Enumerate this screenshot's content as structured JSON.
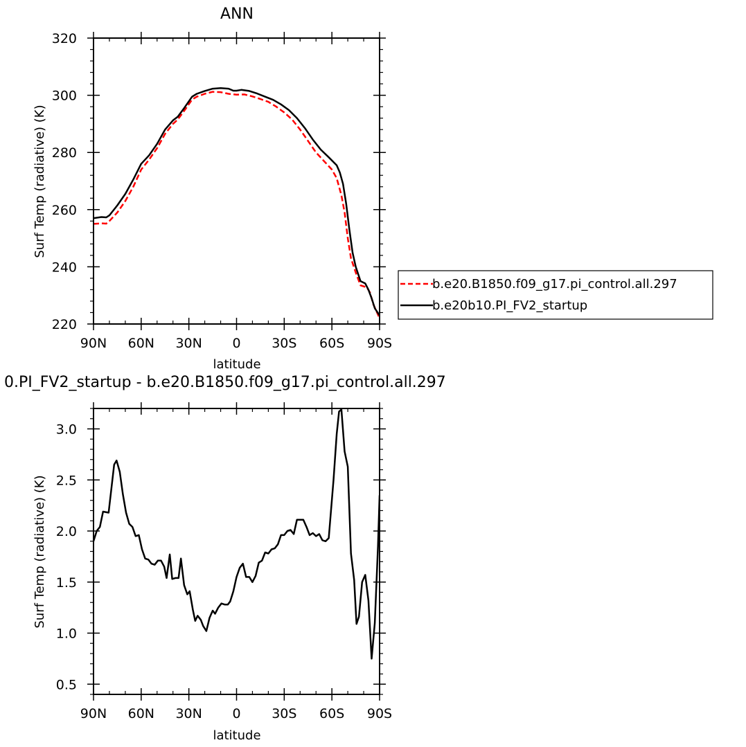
{
  "chart_data": [
    {
      "type": "line",
      "title": "ANN",
      "xlabel": "latitude",
      "ylabel": "Surf Temp (radiative) (K)",
      "xlim": [
        90,
        -90
      ],
      "ylim": [
        220,
        320
      ],
      "x_ticks": [
        90,
        60,
        30,
        0,
        -30,
        -60,
        -90
      ],
      "x_tick_labels": [
        "90N",
        "60N",
        "30N",
        "0",
        "30S",
        "60S",
        "90S"
      ],
      "y_ticks": [
        220,
        240,
        260,
        280,
        300,
        320
      ],
      "y_tick_labels": [
        "220",
        "240",
        "260",
        "280",
        "300",
        "320"
      ],
      "grid": false,
      "legend_placement": "right",
      "series": [
        {
          "name": "b.e20.B1850.f09_g17.pi_control.all.297",
          "color": "#ff0000",
          "style": "dashed",
          "points": [
            [
              90,
              255
            ],
            [
              85,
              255.2
            ],
            [
              82,
              255.1
            ],
            [
              80,
              256
            ],
            [
              75,
              259
            ],
            [
              70,
              263
            ],
            [
              65,
              268
            ],
            [
              60,
              274
            ],
            [
              55,
              277.5
            ],
            [
              50,
              281.5
            ],
            [
              45,
              286.5
            ],
            [
              40,
              290
            ],
            [
              37,
              291.5
            ],
            [
              33,
              294.5
            ],
            [
              28,
              298.5
            ],
            [
              25,
              299.5
            ],
            [
              20,
              300.5
            ],
            [
              15,
              301.2
            ],
            [
              10,
              301.1
            ],
            [
              5,
              300.5
            ],
            [
              0,
              300.2
            ],
            [
              -5,
              300.3
            ],
            [
              -10,
              299.6
            ],
            [
              -15,
              298.7
            ],
            [
              -20,
              297.7
            ],
            [
              -25,
              296
            ],
            [
              -30,
              294
            ],
            [
              -35,
              291.5
            ],
            [
              -40,
              288
            ],
            [
              -45,
              284
            ],
            [
              -50,
              280
            ],
            [
              -55,
              277
            ],
            [
              -60,
              274
            ],
            [
              -63,
              271
            ],
            [
              -66,
              265
            ],
            [
              -68,
              259
            ],
            [
              -70,
              250
            ],
            [
              -72,
              243
            ],
            [
              -75,
              238
            ],
            [
              -78,
              233.5
            ],
            [
              -82,
              232.8
            ],
            [
              -84,
              231
            ],
            [
              -86,
              227
            ],
            [
              -88,
              224.5
            ],
            [
              -90,
              222
            ]
          ]
        },
        {
          "name": "b.e20b10.PI_FV2_startup",
          "color": "#000000",
          "style": "solid",
          "points": [
            [
              90,
              257
            ],
            [
              85,
              257.4
            ],
            [
              82,
              257.3
            ],
            [
              80,
              258
            ],
            [
              75,
              261.5
            ],
            [
              70,
              265.5
            ],
            [
              65,
              270.5
            ],
            [
              60,
              276
            ],
            [
              55,
              279
            ],
            [
              50,
              283
            ],
            [
              45,
              288
            ],
            [
              40,
              291.2
            ],
            [
              37,
              292.5
            ],
            [
              33,
              295.5
            ],
            [
              28,
              299.5
            ],
            [
              25,
              300.5
            ],
            [
              20,
              301.5
            ],
            [
              15,
              302.3
            ],
            [
              10,
              302.5
            ],
            [
              5,
              302.3
            ],
            [
              2,
              301.6
            ],
            [
              0,
              301.6
            ],
            [
              -3,
              301.9
            ],
            [
              -8,
              301.5
            ],
            [
              -13,
              300.6
            ],
            [
              -18,
              299.5
            ],
            [
              -23,
              298.4
            ],
            [
              -28,
              296.8
            ],
            [
              -33,
              294.8
            ],
            [
              -38,
              292
            ],
            [
              -43,
              288.5
            ],
            [
              -48,
              284.5
            ],
            [
              -53,
              281
            ],
            [
              -58,
              278.3
            ],
            [
              -63,
              275.5
            ],
            [
              -65,
              273
            ],
            [
              -67,
              269
            ],
            [
              -69,
              262
            ],
            [
              -71,
              253
            ],
            [
              -73,
              245
            ],
            [
              -75,
              240
            ],
            [
              -78,
              235
            ],
            [
              -81,
              234.2
            ],
            [
              -83,
              232
            ],
            [
              -85,
              229
            ],
            [
              -87,
              225.5
            ],
            [
              -90,
              223
            ]
          ]
        }
      ]
    },
    {
      "type": "line",
      "title": "0.PI_FV2_startup - b.e20.B1850.f09_g17.pi_control.all.297",
      "xlabel": "latitude",
      "ylabel": "Surf Temp (radiative) (K)",
      "xlim": [
        90,
        -90
      ],
      "ylim": [
        0.4,
        3.2
      ],
      "x_ticks": [
        90,
        60,
        30,
        0,
        -30,
        -60,
        -90
      ],
      "x_tick_labels": [
        "90N",
        "60N",
        "30N",
        "0",
        "30S",
        "60S",
        "90S"
      ],
      "y_ticks": [
        0.5,
        1.0,
        1.5,
        2.0,
        2.5,
        3.0
      ],
      "y_tick_labels": [
        "0.5",
        "1.0",
        "1.5",
        "2.0",
        "2.5",
        "3.0"
      ],
      "grid": false,
      "series": [
        {
          "color": "#000000",
          "style": "solid",
          "points": [
            [
              90,
              1.9
            ],
            [
              88,
              2.0
            ],
            [
              86,
              2.04
            ],
            [
              84,
              2.19
            ],
            [
              80.5,
              2.18
            ],
            [
              77,
              2.65
            ],
            [
              75.5,
              2.69
            ],
            [
              73.5,
              2.58
            ],
            [
              71.5,
              2.36
            ],
            [
              69.5,
              2.18
            ],
            [
              67.5,
              2.07
            ],
            [
              65.5,
              2.04
            ],
            [
              63.5,
              1.95
            ],
            [
              61.5,
              1.96
            ],
            [
              59.5,
              1.82
            ],
            [
              57.5,
              1.73
            ],
            [
              55.5,
              1.72
            ],
            [
              53.5,
              1.68
            ],
            [
              51.5,
              1.67
            ],
            [
              49.5,
              1.71
            ],
            [
              47.5,
              1.71
            ],
            [
              45.5,
              1.65
            ],
            [
              44,
              1.54
            ],
            [
              42,
              1.77
            ],
            [
              40.5,
              1.53
            ],
            [
              38.5,
              1.54
            ],
            [
              36.5,
              1.54
            ],
            [
              35,
              1.73
            ],
            [
              33,
              1.47
            ],
            [
              31,
              1.38
            ],
            [
              29.5,
              1.41
            ],
            [
              27.5,
              1.23
            ],
            [
              26,
              1.12
            ],
            [
              24.5,
              1.17
            ],
            [
              22.5,
              1.13
            ],
            [
              21,
              1.07
            ],
            [
              19,
              1.02
            ],
            [
              17,
              1.15
            ],
            [
              15,
              1.22
            ],
            [
              13.5,
              1.19
            ],
            [
              11.5,
              1.25
            ],
            [
              9.5,
              1.29
            ],
            [
              7.5,
              1.28
            ],
            [
              5.5,
              1.28
            ],
            [
              4,
              1.31
            ],
            [
              2,
              1.41
            ],
            [
              0,
              1.55
            ],
            [
              -2,
              1.64
            ],
            [
              -4,
              1.68
            ],
            [
              -6,
              1.55
            ],
            [
              -8,
              1.55
            ],
            [
              -10,
              1.5
            ],
            [
              -12,
              1.56
            ],
            [
              -14,
              1.69
            ],
            [
              -16,
              1.71
            ],
            [
              -18,
              1.79
            ],
            [
              -20,
              1.78
            ],
            [
              -22,
              1.82
            ],
            [
              -24,
              1.83
            ],
            [
              -26,
              1.87
            ],
            [
              -28,
              1.96
            ],
            [
              -30,
              1.96
            ],
            [
              -32,
              2.0
            ],
            [
              -34,
              2.01
            ],
            [
              -36,
              1.97
            ],
            [
              -38,
              2.11
            ],
            [
              -40,
              2.11
            ],
            [
              -42,
              2.11
            ],
            [
              -44,
              2.04
            ],
            [
              -46,
              1.96
            ],
            [
              -48,
              1.98
            ],
            [
              -50,
              1.95
            ],
            [
              -52,
              1.97
            ],
            [
              -54,
              1.91
            ],
            [
              -56,
              1.9
            ],
            [
              -58,
              1.93
            ],
            [
              -61,
              2.5
            ],
            [
              -63,
              2.95
            ],
            [
              -64.5,
              3.17
            ],
            [
              -66,
              3.19
            ],
            [
              -68,
              2.78
            ],
            [
              -70,
              2.63
            ],
            [
              -72,
              1.78
            ],
            [
              -74,
              1.52
            ],
            [
              -75.5,
              1.09
            ],
            [
              -77,
              1.16
            ],
            [
              -79,
              1.5
            ],
            [
              -81,
              1.57
            ],
            [
              -83,
              1.32
            ],
            [
              -85,
              0.75
            ],
            [
              -87,
              1.1
            ],
            [
              -89,
              1.85
            ],
            [
              -90,
              2.35
            ]
          ]
        }
      ]
    }
  ]
}
